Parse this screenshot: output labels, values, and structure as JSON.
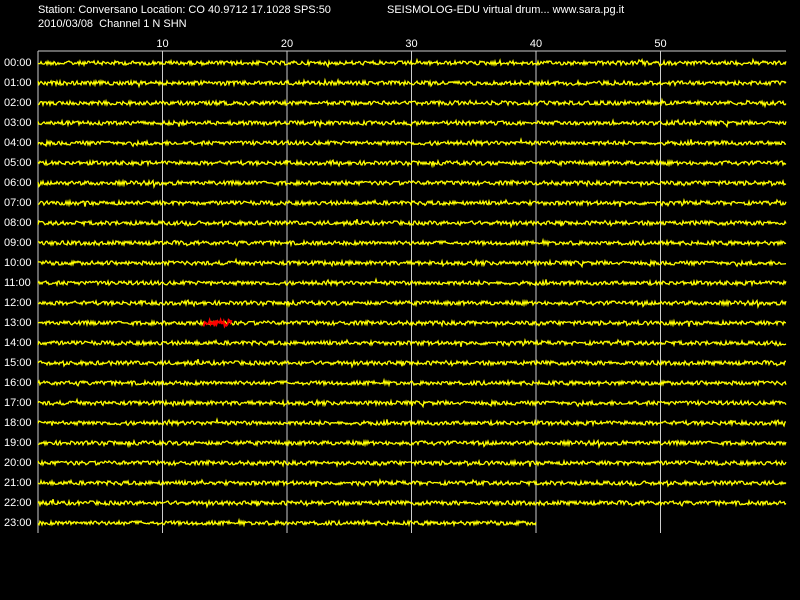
{
  "header": {
    "station": "Station: Conversano Location: CO 40.9712 17.1028 SPS:50",
    "program": "SEISMOLOG-EDU virtual drum... www.sara.pg.it",
    "channel": "2010/03/08  Channel 1 N SHN"
  },
  "minute_ticks": [
    10,
    20,
    30,
    40,
    50
  ],
  "rows": [
    "00:00",
    "01:00",
    "02:00",
    "03:00",
    "04:00",
    "05:00",
    "06:00",
    "07:00",
    "08:00",
    "09:00",
    "10:00",
    "11:00",
    "12:00",
    "13:00",
    "14:00",
    "15:00",
    "16:00",
    "17:00",
    "18:00",
    "19:00",
    "20:00",
    "21:00",
    "22:00",
    "23:00"
  ]
}
